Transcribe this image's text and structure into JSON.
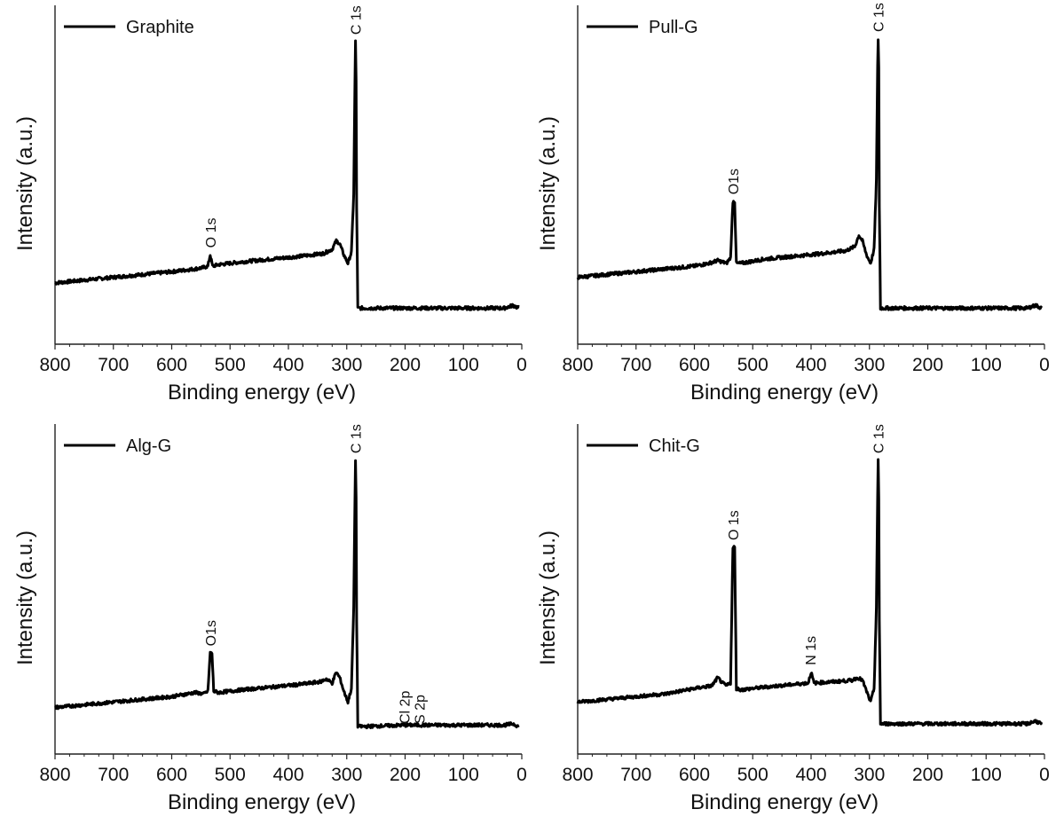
{
  "chart_data": [
    {
      "type": "line",
      "legend": "Graphite",
      "xlabel": "Binding energy (eV)",
      "ylabel": "Intensity (a.u.)",
      "xlim": [
        800,
        0
      ],
      "ylim": [
        0,
        100
      ],
      "x_ticks": [
        "800",
        "700",
        "600",
        "500",
        "400",
        "300",
        "200",
        "100",
        "0"
      ],
      "y_ticks_shown": false,
      "legend_placement": "top-left",
      "series": [
        {
          "name": "Graphite",
          "x": [
            800,
            750,
            700,
            650,
            600,
            560,
            545,
            538,
            534,
            530,
            520,
            480,
            430,
            380,
            340,
            325,
            318,
            312,
            305,
            298,
            292,
            288,
            286,
            285,
            284,
            283,
            281,
            270,
            200,
            100,
            30,
            15,
            5
          ],
          "y": [
            13,
            14,
            15,
            16,
            17,
            18,
            18.5,
            19,
            23,
            19,
            19.5,
            20.5,
            21.5,
            22.5,
            23.5,
            25,
            28,
            27,
            23,
            20,
            24,
            45,
            85,
            99,
            85,
            40,
            4,
            4,
            4,
            4,
            4,
            5,
            4
          ]
        }
      ],
      "annotations": [
        {
          "text": "O 1s",
          "x": 532
        },
        {
          "text": "C 1s",
          "x": 284
        }
      ]
    },
    {
      "type": "line",
      "legend": "Pull-G",
      "xlabel": "Binding energy (eV)",
      "ylabel": "Intensity (a.u.)",
      "xlim": [
        800,
        0
      ],
      "ylim": [
        0,
        100
      ],
      "x_ticks": [
        "800",
        "700",
        "600",
        "500",
        "400",
        "300",
        "200",
        "100",
        "0"
      ],
      "y_ticks_shown": false,
      "legend_placement": "top-left",
      "series": [
        {
          "name": "Pull-G",
          "x": [
            800,
            750,
            700,
            650,
            600,
            575,
            560,
            545,
            538,
            534,
            531,
            528,
            520,
            480,
            430,
            380,
            340,
            325,
            318,
            312,
            305,
            298,
            292,
            288,
            286,
            285,
            284,
            283,
            281,
            270,
            200,
            100,
            30,
            15,
            5
          ],
          "y": [
            15,
            16,
            17,
            18,
            19,
            20,
            21,
            20,
            22,
            42,
            42,
            20,
            20,
            21.5,
            22.5,
            23.5,
            24.5,
            26,
            30,
            28,
            23,
            20,
            25,
            50,
            90,
            100,
            90,
            40,
            4,
            4,
            4,
            4,
            4,
            5,
            4
          ]
        }
      ],
      "annotations": [
        {
          "text": "O1s",
          "x": 532
        },
        {
          "text": "C 1s",
          "x": 284
        }
      ]
    },
    {
      "type": "line",
      "legend": "Alg-G",
      "xlabel": "Binding energy (eV)",
      "ylabel": "Intensity (a.u.)",
      "xlim": [
        800,
        0
      ],
      "ylim": [
        0,
        100
      ],
      "x_ticks": [
        "800",
        "700",
        "600",
        "500",
        "400",
        "300",
        "200",
        "100",
        "0"
      ],
      "y_ticks_shown": false,
      "legend_placement": "top-left",
      "series": [
        {
          "name": "Alg-G",
          "x": [
            800,
            750,
            700,
            650,
            600,
            560,
            545,
            538,
            534,
            531,
            528,
            520,
            480,
            430,
            380,
            345,
            335,
            325,
            318,
            312,
            305,
            298,
            292,
            288,
            286,
            285,
            284,
            283,
            281,
            270,
            200,
            100,
            30,
            15,
            5
          ],
          "y": [
            8,
            9,
            10,
            11,
            12,
            13.5,
            13,
            14,
            28,
            28,
            14,
            13.5,
            14.5,
            15.5,
            16.5,
            17.5,
            18.5,
            17,
            21,
            19,
            14,
            10,
            15,
            45,
            85,
            99,
            85,
            40,
            1,
            1,
            1.5,
            1.5,
            1.5,
            2,
            1
          ]
        }
      ],
      "annotations": [
        {
          "text": "O1s",
          "x": 532
        },
        {
          "text": "C 1s",
          "x": 284
        },
        {
          "text": "Cl 2p",
          "x": 200
        },
        {
          "text": "S 2p",
          "x": 165
        }
      ]
    },
    {
      "type": "line",
      "legend": "Chit-G",
      "xlabel": "Binding energy (eV)",
      "ylabel": "Intensity (a.u.)",
      "xlim": [
        800,
        0
      ],
      "ylim": [
        0,
        100
      ],
      "x_ticks": [
        "800",
        "700",
        "600",
        "500",
        "400",
        "300",
        "200",
        "100",
        "0"
      ],
      "y_ticks_shown": false,
      "legend_placement": "top-left",
      "series": [
        {
          "name": "Chit-G",
          "x": [
            800,
            750,
            700,
            650,
            600,
            570,
            560,
            552,
            545,
            538,
            534,
            531,
            528,
            520,
            480,
            430,
            405,
            400,
            395,
            360,
            330,
            320,
            312,
            305,
            298,
            292,
            288,
            286,
            285,
            284,
            283,
            281,
            270,
            200,
            100,
            30,
            15,
            5
          ],
          "y": [
            10,
            11,
            12,
            13,
            15,
            16,
            19,
            17,
            16,
            17,
            67,
            67,
            15,
            14.5,
            15.5,
            16.5,
            17,
            21,
            17,
            17.5,
            18,
            19,
            18,
            14,
            10,
            15,
            45,
            85,
            99,
            85,
            40,
            2,
            2,
            2,
            2,
            2,
            3,
            2
          ]
        }
      ],
      "annotations": [
        {
          "text": "O 1s",
          "x": 532
        },
        {
          "text": "N 1s",
          "x": 400
        },
        {
          "text": "C 1s",
          "x": 284
        }
      ]
    }
  ]
}
